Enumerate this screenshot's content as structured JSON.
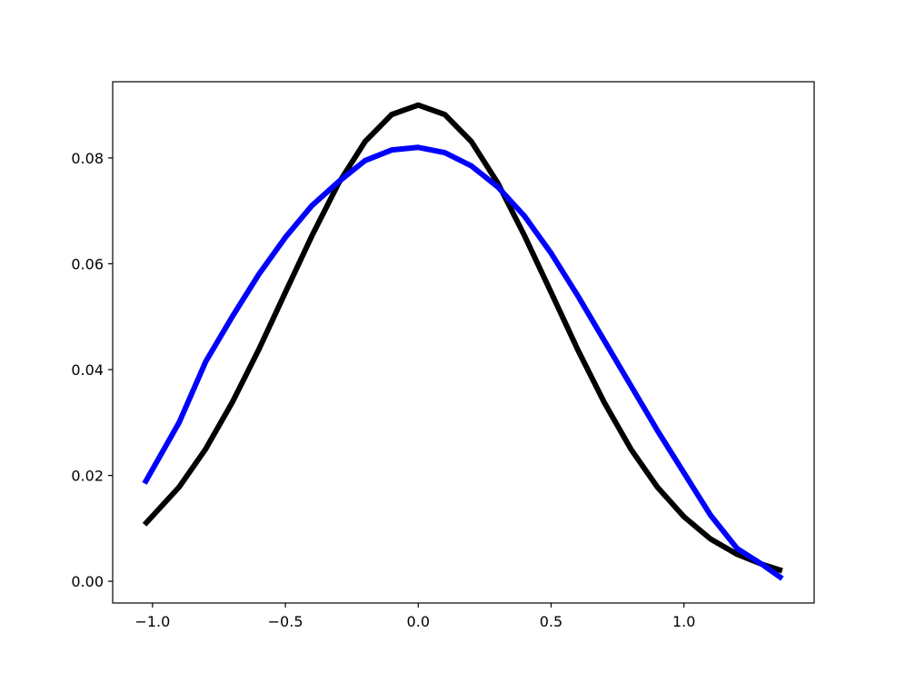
{
  "chart_data": {
    "type": "line",
    "x": [
      -1.03,
      -0.9,
      -0.8,
      -0.7,
      -0.6,
      -0.5,
      -0.4,
      -0.3,
      -0.2,
      -0.1,
      0,
      0.1,
      0.2,
      0.3,
      0.4,
      0.5,
      0.6,
      0.7,
      0.8,
      0.9,
      1.0,
      1.1,
      1.2,
      1.3,
      1.37
    ],
    "series": [
      {
        "color": "#000000",
        "values": [
          0.0107,
          0.0178,
          0.025,
          0.0338,
          0.0438,
          0.0546,
          0.0653,
          0.0752,
          0.0831,
          0.0882,
          0.09,
          0.0882,
          0.0831,
          0.0752,
          0.0653,
          0.0546,
          0.0438,
          0.0338,
          0.025,
          0.0178,
          0.0122,
          0.008,
          0.0051,
          0.0031,
          0.002
        ]
      },
      {
        "color": "#0000ff",
        "values": [
          0.0185,
          0.03,
          0.0415,
          0.05,
          0.058,
          0.065,
          0.071,
          0.0755,
          0.0795,
          0.0815,
          0.082,
          0.081,
          0.0785,
          0.0745,
          0.069,
          0.062,
          0.054,
          0.0455,
          0.037,
          0.0285,
          0.0205,
          0.0125,
          0.0062,
          0.003,
          0.0005
        ]
      }
    ],
    "xlim": [
      -1.15,
      1.49
    ],
    "ylim": [
      -0.0041,
      0.0944
    ],
    "xticks": [
      {
        "value": -1.0,
        "label": "−1.0"
      },
      {
        "value": -0.5,
        "label": "−0.5"
      },
      {
        "value": 0,
        "label": "0.0"
      },
      {
        "value": 0.5,
        "label": "0.5"
      },
      {
        "value": 1.0,
        "label": "1.0"
      }
    ],
    "yticks": [
      {
        "value": 0,
        "label": "0.00"
      },
      {
        "value": 0.02,
        "label": "0.02"
      },
      {
        "value": 0.04,
        "label": "0.04"
      },
      {
        "value": 0.06,
        "label": "0.06"
      },
      {
        "value": 0.08,
        "label": "0.08"
      }
    ]
  }
}
